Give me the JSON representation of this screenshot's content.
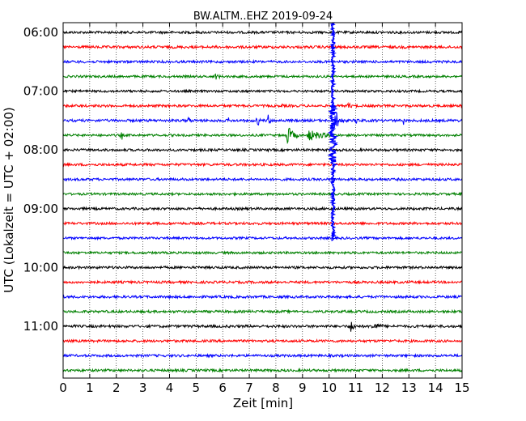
{
  "chart_data": {
    "type": "line",
    "title": "BW.ALTM..EHZ 2019-09-24",
    "xlabel": "Zeit  [min]",
    "ylabel": "UTC (Lokalzeit = UTC + 02:00)",
    "xlim": [
      0,
      15
    ],
    "x_ticks": [
      "0",
      "1",
      "2",
      "3",
      "4",
      "5",
      "6",
      "7",
      "8",
      "9",
      "10",
      "11",
      "12",
      "13",
      "14",
      "15"
    ],
    "y_ticks": [
      {
        "label": "06:00",
        "row": 0
      },
      {
        "label": "07:00",
        "row": 4
      },
      {
        "label": "08:00",
        "row": 8
      },
      {
        "label": "09:00",
        "row": 12
      },
      {
        "label": "10:00",
        "row": 16
      },
      {
        "label": "11:00",
        "row": 20
      }
    ],
    "grid": "vertical dotted at each minute",
    "trace_colors": [
      "#000000",
      "#ff0000",
      "#0000ff",
      "#008000"
    ],
    "row_minutes": 15,
    "series": [
      {
        "row": 0,
        "start_utc": "06:00",
        "color": "#000000",
        "noise": 1.5,
        "events": [
          {
            "minute": 12.3,
            "amp": 3,
            "dur": 0.2
          }
        ]
      },
      {
        "row": 1,
        "start_utc": "06:15",
        "color": "#ff0000",
        "noise": 1.6,
        "events": []
      },
      {
        "row": 2,
        "start_utc": "06:30",
        "color": "#0000ff",
        "noise": 1.5,
        "events": []
      },
      {
        "row": 3,
        "start_utc": "06:45",
        "color": "#008000",
        "noise": 1.4,
        "events": [
          {
            "minute": 5.7,
            "amp": 5,
            "dur": 0.5
          }
        ]
      },
      {
        "row": 4,
        "start_utc": "07:00",
        "color": "#000000",
        "noise": 1.4,
        "events": []
      },
      {
        "row": 5,
        "start_utc": "07:15",
        "color": "#ff0000",
        "noise": 1.5,
        "events": [
          {
            "minute": 8.2,
            "amp": 4,
            "dur": 0.2
          },
          {
            "minute": 10.7,
            "amp": 5,
            "dur": 0.4
          }
        ]
      },
      {
        "row": 6,
        "start_utc": "07:30",
        "color": "#0000ff",
        "noise": 1.6,
        "events": [
          {
            "minute": 4.7,
            "amp": 8,
            "dur": 0.2
          },
          {
            "minute": 6.2,
            "amp": 6,
            "dur": 0.1
          },
          {
            "minute": 7.3,
            "amp": 10,
            "dur": 0.2
          },
          {
            "minute": 7.7,
            "amp": 9,
            "dur": 0.2
          },
          {
            "minute": 10.2,
            "amp": 18,
            "dur": 0.4
          },
          {
            "minute": 11.0,
            "amp": 6,
            "dur": 0.3
          },
          {
            "minute": 12.8,
            "amp": 6,
            "dur": 0.1
          },
          {
            "minute": 13.6,
            "amp": 4,
            "dur": 0.1
          }
        ]
      },
      {
        "row": 7,
        "start_utc": "07:45",
        "color": "#008000",
        "noise": 1.4,
        "events": [
          {
            "minute": 2.2,
            "amp": 12,
            "dur": 0.05
          },
          {
            "minute": 8.4,
            "amp": 14,
            "dur": 0.6
          },
          {
            "minute": 9.2,
            "amp": 8,
            "dur": 1.5
          }
        ]
      },
      {
        "row": 8,
        "start_utc": "08:00",
        "color": "#000000",
        "noise": 1.5,
        "events": [
          {
            "minute": 4.9,
            "amp": 4,
            "dur": 0.1
          },
          {
            "minute": 7.7,
            "amp": 3,
            "dur": 0.2
          }
        ]
      },
      {
        "row": 9,
        "start_utc": "08:15",
        "color": "#ff0000",
        "noise": 1.5,
        "events": []
      },
      {
        "row": 10,
        "start_utc": "08:30",
        "color": "#0000ff",
        "noise": 1.5,
        "events": []
      },
      {
        "row": 11,
        "start_utc": "08:45",
        "color": "#008000",
        "noise": 1.4,
        "events": []
      },
      {
        "row": 12,
        "start_utc": "09:00",
        "color": "#000000",
        "noise": 1.5,
        "events": []
      },
      {
        "row": 13,
        "start_utc": "09:15",
        "color": "#ff0000",
        "noise": 1.5,
        "events": []
      },
      {
        "row": 14,
        "start_utc": "09:30",
        "color": "#0000ff",
        "noise": 1.4,
        "events": [
          {
            "minute": 4.8,
            "amp": 3,
            "dur": 0.1
          }
        ]
      },
      {
        "row": 15,
        "start_utc": "09:45",
        "color": "#008000",
        "noise": 1.4,
        "events": [
          {
            "minute": 8.7,
            "amp": 3,
            "dur": 0.1
          }
        ]
      },
      {
        "row": 16,
        "start_utc": "10:00",
        "color": "#000000",
        "noise": 1.5,
        "events": []
      },
      {
        "row": 17,
        "start_utc": "10:15",
        "color": "#ff0000",
        "noise": 1.5,
        "events": []
      },
      {
        "row": 18,
        "start_utc": "10:30",
        "color": "#0000ff",
        "noise": 1.5,
        "events": []
      },
      {
        "row": 19,
        "start_utc": "10:45",
        "color": "#008000",
        "noise": 1.5,
        "events": []
      },
      {
        "row": 20,
        "start_utc": "11:00",
        "color": "#000000",
        "noise": 1.6,
        "events": [
          {
            "minute": 10.8,
            "amp": 9,
            "dur": 0.4
          },
          {
            "minute": 11.6,
            "amp": 5,
            "dur": 1.2
          }
        ]
      },
      {
        "row": 21,
        "start_utc": "11:15",
        "color": "#ff0000",
        "noise": 1.5,
        "events": []
      },
      {
        "row": 22,
        "start_utc": "11:30",
        "color": "#0000ff",
        "noise": 1.5,
        "events": []
      },
      {
        "row": 23,
        "start_utc": "11:45",
        "color": "#008000",
        "noise": 1.5,
        "events": []
      }
    ],
    "major_event": {
      "minute": 10.15,
      "row_start": 0,
      "row_end": 14,
      "color": "#0000ff"
    }
  }
}
